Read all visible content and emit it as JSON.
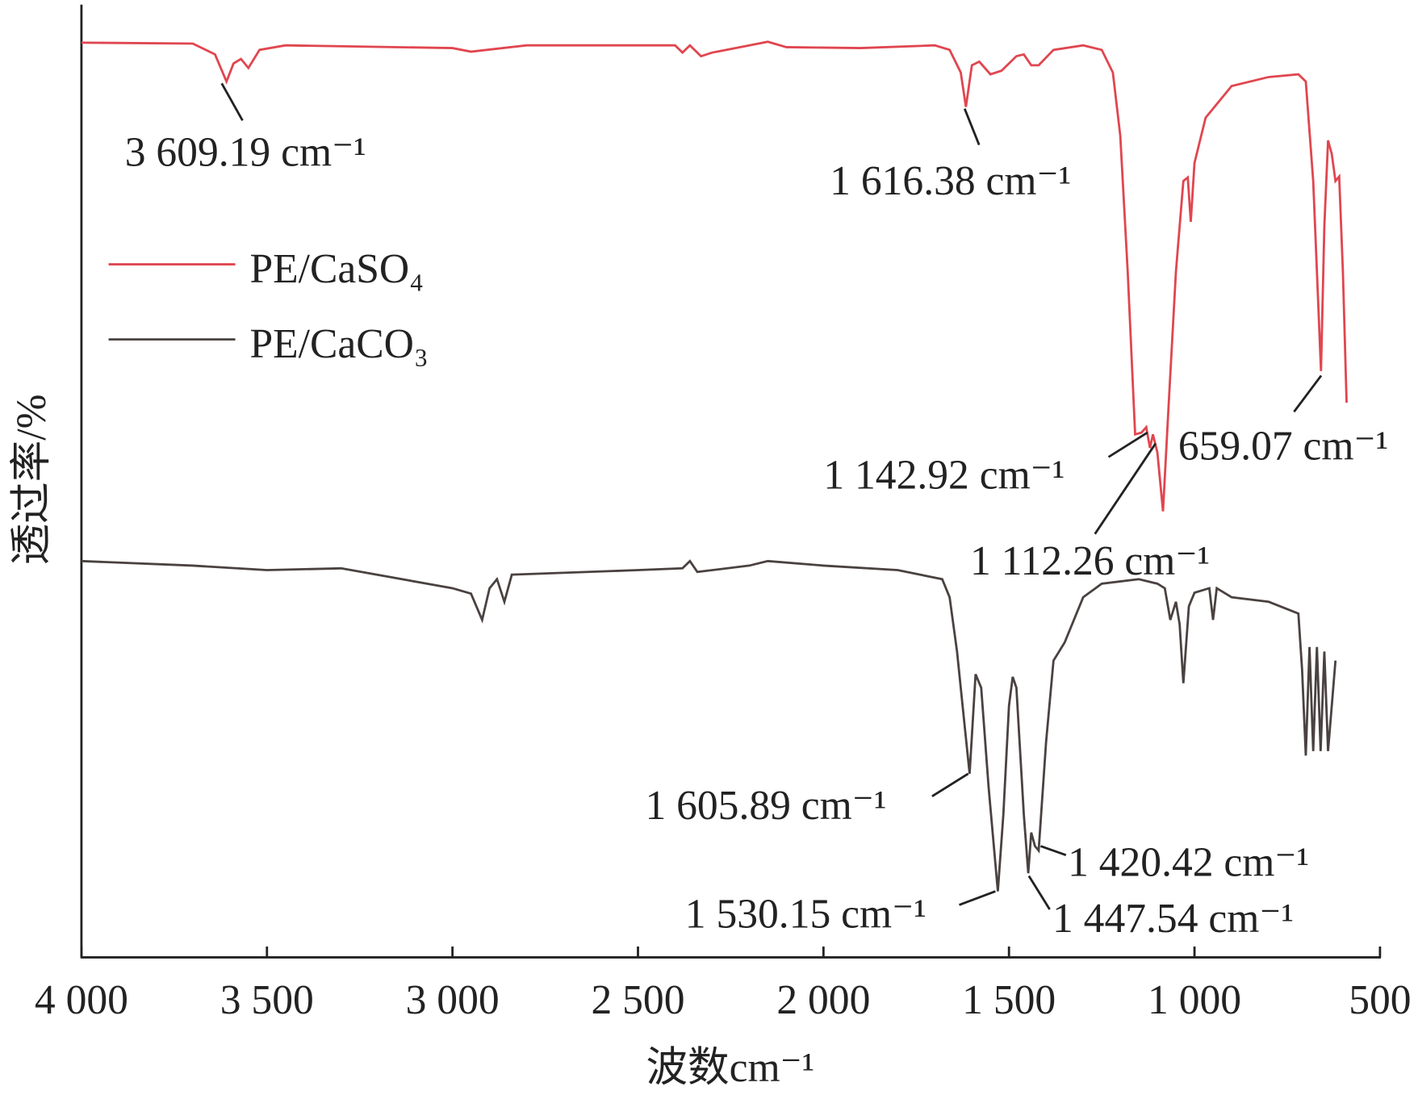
{
  "chart_data": {
    "type": "line",
    "xlabel": "波数cm⁻¹",
    "ylabel": "透过率/%",
    "xlim": [
      4000,
      500
    ],
    "xticks": [
      {
        "value": 4000,
        "label": "4 000"
      },
      {
        "value": 3500,
        "label": "3 500"
      },
      {
        "value": 3000,
        "label": "3 000"
      },
      {
        "value": 2500,
        "label": "2 500"
      },
      {
        "value": 2000,
        "label": "2 000"
      },
      {
        "value": 1500,
        "label": "1 500"
      },
      {
        "value": 1000,
        "label": "1 000"
      },
      500
    ],
    "ylim": [
      0,
      105.3
    ],
    "legend": "upper left",
    "series": [
      {
        "name": "PE/CaSO₄",
        "color": "#e0464f",
        "x": [
          4000,
          3700,
          3640,
          3609,
          3590,
          3570,
          3550,
          3520,
          3450,
          3000,
          2950,
          2800,
          2400,
          2380,
          2360,
          2330,
          2300,
          2200,
          2150,
          2100,
          1900,
          1700,
          1660,
          1630,
          1616,
          1600,
          1580,
          1550,
          1520,
          1480,
          1460,
          1440,
          1420,
          1380,
          1300,
          1250,
          1220,
          1200,
          1180,
          1160,
          1143,
          1130,
          1120,
          1112,
          1100,
          1085,
          1070,
          1050,
          1030,
          1018,
          1010,
          1000,
          970,
          900,
          800,
          720,
          700,
          680,
          659,
          650,
          640,
          630,
          620,
          610,
          600,
          590
        ],
        "values": [
          101.1,
          101.0,
          99.8,
          96.8,
          98.8,
          99.3,
          98.3,
          100.3,
          100.8,
          100.5,
          100.1,
          100.8,
          100.8,
          100.0,
          100.8,
          99.6,
          100.0,
          100.8,
          101.2,
          100.6,
          100.5,
          100.8,
          100.3,
          97.8,
          94.0,
          98.6,
          99.0,
          97.6,
          98.0,
          99.6,
          99.8,
          98.6,
          98.6,
          100.3,
          100.8,
          100.3,
          97.8,
          90.8,
          75.8,
          57.8,
          58.0,
          58.6,
          56.3,
          57.8,
          55.8,
          49.3,
          60.8,
          75.8,
          85.8,
          86.2,
          81.3,
          87.8,
          92.8,
          96.3,
          97.3,
          97.6,
          96.8,
          85.8,
          64.8,
          80.8,
          90.3,
          88.8,
          85.8,
          86.3,
          75.8,
          61.3
        ]
      },
      {
        "name": "PE/CaCO₃",
        "color": "#4a4240",
        "x": [
          4000,
          3700,
          3500,
          3300,
          3000,
          2950,
          2920,
          2900,
          2880,
          2860,
          2840,
          2500,
          2380,
          2360,
          2340,
          2200,
          2150,
          2000,
          1800,
          1680,
          1660,
          1640,
          1620,
          1606,
          1590,
          1575,
          1555,
          1530,
          1515,
          1500,
          1490,
          1480,
          1460,
          1448,
          1440,
          1430,
          1420,
          1400,
          1380,
          1350,
          1300,
          1250,
          1150,
          1100,
          1080,
          1065,
          1050,
          1040,
          1030,
          1015,
          1000,
          960,
          950,
          940,
          900,
          800,
          720,
          710,
          700,
          690,
          680,
          670,
          660,
          650,
          640,
          620
        ],
        "values": [
          43.8,
          43.3,
          42.8,
          43.0,
          40.8,
          40.2,
          37.3,
          40.8,
          41.8,
          39.3,
          42.3,
          42.8,
          43.0,
          43.8,
          42.6,
          43.3,
          43.8,
          43.3,
          42.8,
          41.8,
          39.8,
          33.8,
          25.8,
          20.3,
          31.3,
          29.8,
          18.8,
          7.3,
          15.8,
          27.8,
          31.0,
          29.8,
          15.8,
          9.3,
          13.8,
          12.3,
          11.8,
          23.8,
          32.8,
          34.8,
          39.8,
          41.3,
          41.8,
          41.3,
          40.8,
          37.3,
          39.3,
          36.8,
          30.3,
          38.8,
          40.3,
          40.8,
          37.3,
          40.8,
          39.8,
          39.3,
          38.0,
          31.8,
          22.3,
          34.3,
          22.8,
          34.3,
          22.8,
          33.8,
          22.8,
          32.8
        ]
      }
    ],
    "annotations": [
      {
        "label": "3 609.19 cm⁻¹",
        "x": 3609.19
      },
      {
        "label": "1 616.38 cm⁻¹",
        "x": 1616.38
      },
      {
        "label": "1 142.92 cm⁻¹",
        "x": 1142.92
      },
      {
        "label": "1 112.26 cm⁻¹",
        "x": 1112.26
      },
      {
        "label": "659.07 cm⁻¹",
        "x": 659.07
      },
      {
        "label": "1 605.89 cm⁻¹",
        "x": 1605.89
      },
      {
        "label": "1 530.15 cm⁻¹",
        "x": 1530.15
      },
      {
        "label": "1 447.54 cm⁻¹",
        "x": 1447.54
      },
      {
        "label": "1 420.42 cm⁻¹",
        "x": 1420.42
      }
    ]
  }
}
